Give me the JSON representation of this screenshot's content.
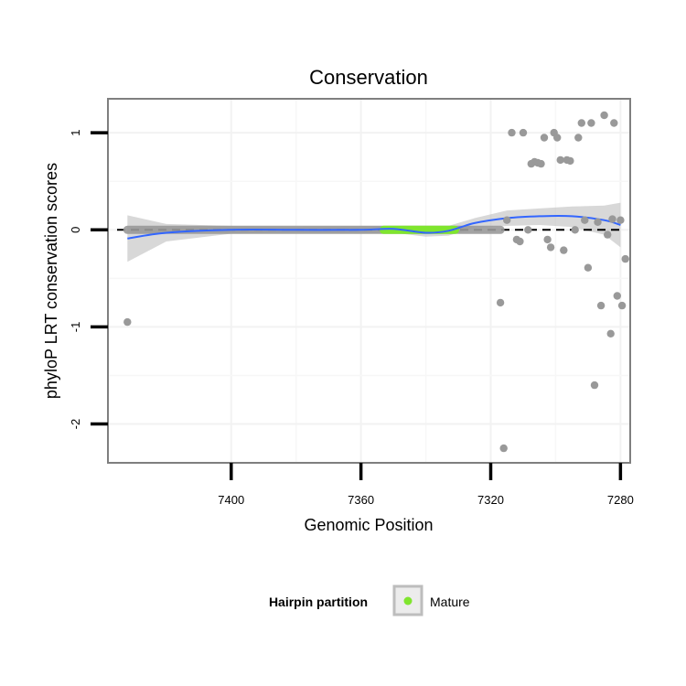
{
  "chart_data": {
    "type": "scatter",
    "title": "Conservation",
    "xlabel": "Genomic Position",
    "ylabel": "phyloP LRT conservation scores",
    "x_reversed": true,
    "xlim": [
      7438,
      7277
    ],
    "ylim": [
      -2.4,
      1.35
    ],
    "x_ticks": [
      7400,
      7360,
      7320,
      7280
    ],
    "x_tick_labels": [
      "7400",
      "7360",
      "7320",
      "7280"
    ],
    "y_ticks": [
      1,
      0,
      -1,
      -2
    ],
    "y_tick_labels": [
      "1",
      "0",
      "-1",
      "-2"
    ],
    "reference_line": {
      "y": 0,
      "style": "dashed",
      "color": "#000000"
    },
    "points": [
      {
        "x": 7432,
        "y": -0.95
      },
      {
        "x": 7317,
        "y": -0.75
      },
      {
        "x": 7316,
        "y": -2.25
      },
      {
        "x": 7315,
        "y": 0.1
      },
      {
        "x": 7313.5,
        "y": 1.0
      },
      {
        "x": 7312,
        "y": -0.1
      },
      {
        "x": 7311,
        "y": -0.12
      },
      {
        "x": 7310,
        "y": 1.0
      },
      {
        "x": 7308.5,
        "y": 0.0
      },
      {
        "x": 7307.5,
        "y": 0.68
      },
      {
        "x": 7306.5,
        "y": 0.7
      },
      {
        "x": 7305.5,
        "y": 0.69
      },
      {
        "x": 7304.5,
        "y": 0.68
      },
      {
        "x": 7303.5,
        "y": 0.95
      },
      {
        "x": 7302.5,
        "y": -0.1
      },
      {
        "x": 7301.5,
        "y": -0.18
      },
      {
        "x": 7300.5,
        "y": 1.0
      },
      {
        "x": 7299.5,
        "y": 0.95
      },
      {
        "x": 7298.5,
        "y": 0.72
      },
      {
        "x": 7297.5,
        "y": -0.21
      },
      {
        "x": 7296.5,
        "y": 0.72
      },
      {
        "x": 7295.5,
        "y": 0.71
      },
      {
        "x": 7294,
        "y": 0.0
      },
      {
        "x": 7293,
        "y": 0.95
      },
      {
        "x": 7292,
        "y": 1.1
      },
      {
        "x": 7291,
        "y": 0.1
      },
      {
        "x": 7290,
        "y": -0.39
      },
      {
        "x": 7289,
        "y": 1.1
      },
      {
        "x": 7288,
        "y": -1.6
      },
      {
        "x": 7287,
        "y": 0.08
      },
      {
        "x": 7286,
        "y": -0.78
      },
      {
        "x": 7285,
        "y": 1.18
      },
      {
        "x": 7284,
        "y": -0.05
      },
      {
        "x": 7283,
        "y": -1.07
      },
      {
        "x": 7282.5,
        "y": 0.11
      },
      {
        "x": 7282,
        "y": 1.1
      },
      {
        "x": 7281,
        "y": -0.68
      },
      {
        "x": 7280,
        "y": 0.1
      },
      {
        "x": 7279.5,
        "y": -0.78
      },
      {
        "x": 7278.5,
        "y": -0.3
      }
    ],
    "point_color": "#999999",
    "conserved_points_range": {
      "x_start": 7432,
      "x_end": 7317,
      "y": 0
    },
    "mature_region": {
      "x_start": 7353,
      "x_end": 7331,
      "y": 0,
      "color": "#7FE52E"
    },
    "smooth": {
      "color": "#3366FF",
      "x": [
        7432,
        7420,
        7400,
        7380,
        7360,
        7350,
        7340,
        7333,
        7325,
        7315,
        7305,
        7295,
        7285,
        7280
      ],
      "y": [
        -0.09,
        -0.03,
        0.0,
        0.0,
        0.0,
        0.01,
        -0.03,
        -0.01,
        0.07,
        0.12,
        0.14,
        0.14,
        0.1,
        0.05
      ],
      "band_color": "#BEBEBE",
      "band_upper": [
        0.15,
        0.06,
        0.04,
        0.03,
        0.04,
        0.04,
        0.02,
        0.04,
        0.12,
        0.2,
        0.22,
        0.24,
        0.25,
        0.28
      ],
      "band_lower": [
        -0.33,
        -0.12,
        -0.04,
        -0.03,
        -0.04,
        -0.03,
        -0.07,
        -0.06,
        0.02,
        0.04,
        0.05,
        0.03,
        -0.05,
        -0.18
      ]
    },
    "legend": {
      "title": "Hairpin partition",
      "entries": [
        {
          "label": "Mature",
          "color": "#7FE52E"
        }
      ],
      "position": "bottom"
    }
  }
}
